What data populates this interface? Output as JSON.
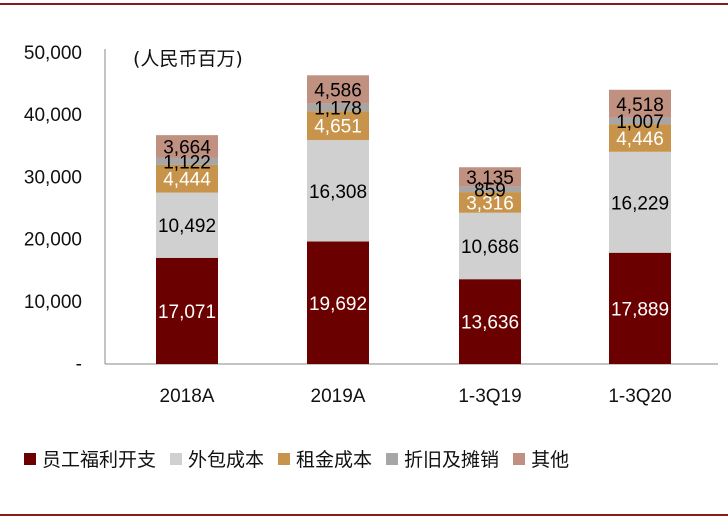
{
  "chart_data": {
    "type": "bar",
    "stacked": true,
    "unit_label": "(人民币百万)",
    "categories": [
      "2018A",
      "2019A",
      "1-3Q19",
      "1-3Q20"
    ],
    "yticks": [
      "-",
      "10,000",
      "20,000",
      "30,000",
      "40,000",
      "50,000"
    ],
    "ylim": [
      0,
      50000
    ],
    "legend_position": "bottom",
    "series": [
      {
        "name": "员工福利开支",
        "color": "#6b0000",
        "label_color": "#ffffff",
        "values": [
          17071,
          19692,
          13636,
          17889
        ],
        "labels": [
          "17,071",
          "19,692",
          "13,636",
          "17,889"
        ]
      },
      {
        "name": "外包成本",
        "color": "#d0d0d0",
        "label_color": "#000000",
        "values": [
          10492,
          16308,
          10686,
          16229
        ],
        "labels": [
          "10,492",
          "16,308",
          "10,686",
          "16,229"
        ]
      },
      {
        "name": "租金成本",
        "color": "#c8934a",
        "label_color": "#ffffff",
        "values": [
          4444,
          4651,
          3316,
          4446
        ],
        "labels": [
          "4,444",
          "4,651",
          "3,316",
          "4,446"
        ]
      },
      {
        "name": "折旧及摊销",
        "color": "#a6a6a6",
        "label_color": "#000000",
        "values": [
          1122,
          1178,
          859,
          1007
        ],
        "labels": [
          "1,122",
          "1,178",
          "859",
          "1,007"
        ]
      },
      {
        "name": "其他",
        "color": "#c09080",
        "label_color": "#000000",
        "values": [
          3664,
          4586,
          3135,
          4518
        ],
        "labels": [
          "3,664",
          "4,586",
          "3,135",
          "4,518"
        ]
      }
    ]
  }
}
